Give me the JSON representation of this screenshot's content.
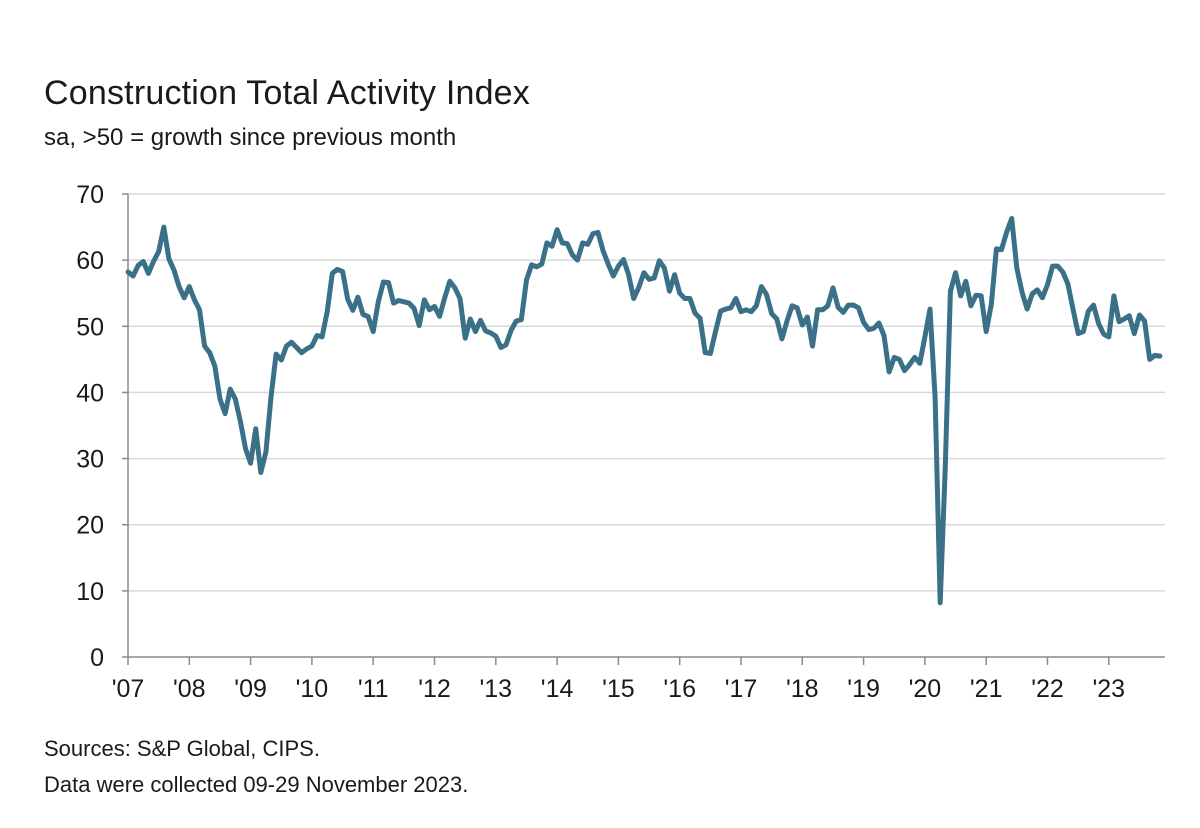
{
  "header": {
    "title": "Construction Total Activity Index",
    "subtitle": "sa, >50 = growth since previous month"
  },
  "footer": {
    "sources": "Sources: S&P Global, CIPS.",
    "note": "Data were collected 09-29 November 2023."
  },
  "colors": {
    "line": "#3a7188",
    "grid": "#d9d9d9",
    "axis": "#8a8a8a"
  },
  "chart_data": {
    "type": "line",
    "title": "Construction Total Activity Index",
    "subtitle": "sa, >50 = growth since previous month",
    "xlabel": "",
    "ylabel": "",
    "ylim": [
      0,
      70
    ],
    "yticks": [
      0,
      10,
      20,
      30,
      40,
      50,
      60,
      70
    ],
    "xticks": [
      "'07",
      "'08",
      "'09",
      "'10",
      "'11",
      "'12",
      "'13",
      "'14",
      "'15",
      "'16",
      "'17",
      "'18",
      "'19",
      "'20",
      "'21",
      "'22",
      "'23"
    ],
    "grid": true,
    "legend": "none",
    "series": [
      {
        "x": [
          "2007-01",
          "2007-02",
          "2007-03",
          "2007-04",
          "2007-05",
          "2007-06",
          "2007-07",
          "2007-08",
          "2007-09",
          "2007-10",
          "2007-11",
          "2007-12",
          "2008-01",
          "2008-02",
          "2008-03",
          "2008-04",
          "2008-05",
          "2008-06",
          "2008-07",
          "2008-08",
          "2008-09",
          "2008-10",
          "2008-11",
          "2008-12",
          "2009-01",
          "2009-02",
          "2009-03",
          "2009-04",
          "2009-05",
          "2009-06",
          "2009-07",
          "2009-08",
          "2009-09",
          "2009-10",
          "2009-11",
          "2009-12",
          "2010-01",
          "2010-02",
          "2010-03",
          "2010-04",
          "2010-05",
          "2010-06",
          "2010-07",
          "2010-08",
          "2010-09",
          "2010-10",
          "2010-11",
          "2010-12",
          "2011-01",
          "2011-02",
          "2011-03",
          "2011-04",
          "2011-05",
          "2011-06",
          "2011-07",
          "2011-08",
          "2011-09",
          "2011-10",
          "2011-11",
          "2011-12",
          "2012-01",
          "2012-02",
          "2012-03",
          "2012-04",
          "2012-05",
          "2012-06",
          "2012-07",
          "2012-08",
          "2012-09",
          "2012-10",
          "2012-11",
          "2012-12",
          "2013-01",
          "2013-02",
          "2013-03",
          "2013-04",
          "2013-05",
          "2013-06",
          "2013-07",
          "2013-08",
          "2013-09",
          "2013-10",
          "2013-11",
          "2013-12",
          "2014-01",
          "2014-02",
          "2014-03",
          "2014-04",
          "2014-05",
          "2014-06",
          "2014-07",
          "2014-08",
          "2014-09",
          "2014-10",
          "2014-11",
          "2014-12",
          "2015-01",
          "2015-02",
          "2015-03",
          "2015-04",
          "2015-05",
          "2015-06",
          "2015-07",
          "2015-08",
          "2015-09",
          "2015-10",
          "2015-11",
          "2015-12",
          "2016-01",
          "2016-02",
          "2016-03",
          "2016-04",
          "2016-05",
          "2016-06",
          "2016-07",
          "2016-08",
          "2016-09",
          "2016-10",
          "2016-11",
          "2016-12",
          "2017-01",
          "2017-02",
          "2017-03",
          "2017-04",
          "2017-05",
          "2017-06",
          "2017-07",
          "2017-08",
          "2017-09",
          "2017-10",
          "2017-11",
          "2017-12",
          "2018-01",
          "2018-02",
          "2018-03",
          "2018-04",
          "2018-05",
          "2018-06",
          "2018-07",
          "2018-08",
          "2018-09",
          "2018-10",
          "2018-11",
          "2018-12",
          "2019-01",
          "2019-02",
          "2019-03",
          "2019-04",
          "2019-05",
          "2019-06",
          "2019-07",
          "2019-08",
          "2019-09",
          "2019-10",
          "2019-11",
          "2019-12",
          "2020-01",
          "2020-02",
          "2020-03",
          "2020-04",
          "2020-05",
          "2020-06",
          "2020-07",
          "2020-08",
          "2020-09",
          "2020-10",
          "2020-11",
          "2020-12",
          "2021-01",
          "2021-02",
          "2021-03",
          "2021-04",
          "2021-05",
          "2021-06",
          "2021-07",
          "2021-08",
          "2021-09",
          "2021-10",
          "2021-11",
          "2021-12",
          "2022-01",
          "2022-02",
          "2022-03",
          "2022-04",
          "2022-05",
          "2022-06",
          "2022-07",
          "2022-08",
          "2022-09",
          "2022-10",
          "2022-11",
          "2022-12",
          "2023-01",
          "2023-02",
          "2023-03",
          "2023-04",
          "2023-05",
          "2023-06",
          "2023-07",
          "2023-08",
          "2023-09",
          "2023-10",
          "2023-11"
        ],
        "values": [
          58.2,
          57.6,
          59.2,
          59.8,
          58.0,
          59.8,
          61.3,
          65.0,
          60.2,
          58.5,
          56.0,
          54.3,
          56.0,
          54.0,
          52.5,
          47.0,
          46.0,
          44.0,
          39.0,
          36.8,
          40.5,
          39.0,
          35.6,
          31.5,
          29.3,
          34.5,
          27.9,
          31.0,
          39.3,
          45.8,
          44.9,
          47.0,
          47.6,
          46.8,
          46.0,
          46.6,
          47.0,
          48.6,
          48.4,
          52.2,
          58.0,
          58.6,
          58.3,
          54.1,
          52.4,
          54.4,
          51.8,
          51.5,
          49.2,
          53.7,
          56.7,
          56.6,
          53.5,
          53.9,
          53.7,
          53.5,
          52.7,
          50.1,
          54.0,
          52.5,
          53.0,
          51.5,
          54.3,
          56.8,
          55.8,
          54.2,
          48.2,
          51.1,
          49.2,
          50.9,
          49.3,
          49.0,
          48.5,
          46.8,
          47.2,
          49.4,
          50.8,
          51.0,
          57.0,
          59.3,
          59.0,
          59.4,
          62.6,
          62.1,
          64.6,
          62.6,
          62.5,
          60.8,
          60.0,
          62.6,
          62.4,
          64.0,
          64.2,
          61.4,
          59.4,
          57.6,
          59.1,
          60.1,
          57.8,
          54.2,
          55.9,
          58.1,
          57.1,
          57.3,
          59.9,
          58.8,
          55.3,
          57.8,
          55.0,
          54.2,
          54.2,
          52.0,
          51.2,
          46.0,
          45.9,
          49.2,
          52.3,
          52.6,
          52.8,
          54.2,
          52.2,
          52.5,
          52.2,
          53.1,
          56.0,
          54.8,
          51.9,
          51.1,
          48.1,
          50.8,
          53.1,
          52.8,
          50.2,
          51.4,
          47.0,
          52.5,
          52.5,
          53.1,
          55.8,
          52.9,
          52.1,
          53.2,
          53.2,
          52.8,
          50.6,
          49.5,
          49.7,
          50.5,
          48.6,
          43.1,
          45.3,
          45.0,
          43.3,
          44.2,
          45.3,
          44.4,
          48.4,
          52.6,
          39.3,
          8.2,
          28.9,
          55.3,
          58.1,
          54.6,
          56.8,
          53.1,
          54.7,
          54.6,
          49.2,
          53.3,
          61.7,
          61.6,
          64.2,
          66.3,
          58.7,
          55.2,
          52.6,
          54.9,
          55.5,
          54.3,
          56.3,
          59.1,
          59.1,
          58.2,
          56.4,
          52.6,
          48.9,
          49.2,
          52.3,
          53.2,
          50.4,
          48.8,
          48.4,
          54.6,
          50.7,
          51.1,
          51.6,
          48.9,
          51.7,
          50.8,
          45.0,
          45.6,
          45.5
        ]
      }
    ]
  }
}
